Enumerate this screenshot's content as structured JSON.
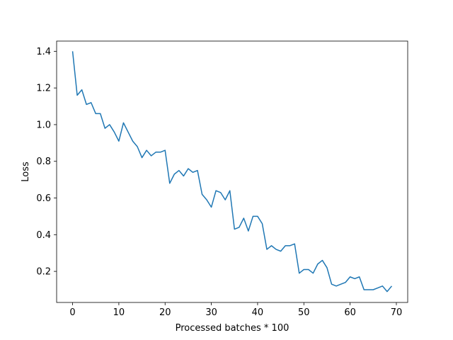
{
  "chart_data": {
    "type": "line",
    "title": "",
    "xlabel": "Processed batches * 100",
    "ylabel": "Loss",
    "xlim": [
      -3.45,
      72.45
    ],
    "ylim": [
      0.0305,
      1.4555
    ],
    "xticks": [
      0,
      10,
      20,
      30,
      40,
      50,
      60,
      70
    ],
    "yticks": [
      0.2,
      0.4,
      0.6,
      0.8,
      1.0,
      1.2,
      1.4
    ],
    "ytick_labels": [
      "0.2",
      "0.4",
      "0.6",
      "0.8",
      "1.0",
      "1.2",
      "1.4"
    ],
    "grid": false,
    "line_color": "#1f77b4",
    "series": [
      {
        "x": [
          0,
          1,
          2,
          3,
          4,
          5,
          6,
          7,
          8,
          9,
          10,
          11,
          12,
          13,
          14,
          15,
          16,
          17,
          18,
          19,
          20,
          21,
          22,
          23,
          24,
          25,
          26,
          27,
          28,
          29,
          30,
          31,
          32,
          33,
          34,
          35,
          36,
          37,
          38,
          39,
          40,
          41,
          42,
          43,
          44,
          45,
          46,
          47,
          48,
          49,
          50,
          51,
          52,
          53,
          54,
          55,
          56,
          57,
          58,
          59,
          60,
          61,
          62,
          63,
          64,
          65,
          66,
          67,
          68,
          69
        ],
        "values": [
          1.4,
          1.16,
          1.19,
          1.11,
          1.12,
          1.06,
          1.06,
          0.98,
          1.0,
          0.96,
          0.91,
          1.01,
          0.96,
          0.91,
          0.88,
          0.82,
          0.86,
          0.83,
          0.85,
          0.85,
          0.86,
          0.68,
          0.73,
          0.75,
          0.72,
          0.76,
          0.74,
          0.75,
          0.62,
          0.59,
          0.55,
          0.64,
          0.63,
          0.59,
          0.64,
          0.43,
          0.44,
          0.49,
          0.42,
          0.5,
          0.5,
          0.46,
          0.32,
          0.34,
          0.32,
          0.31,
          0.34,
          0.34,
          0.35,
          0.19,
          0.21,
          0.21,
          0.19,
          0.24,
          0.26,
          0.22,
          0.13,
          0.12,
          0.13,
          0.14,
          0.17,
          0.16,
          0.17,
          0.1,
          0.1,
          0.1,
          0.11,
          0.12,
          0.09,
          0.12
        ]
      }
    ]
  }
}
